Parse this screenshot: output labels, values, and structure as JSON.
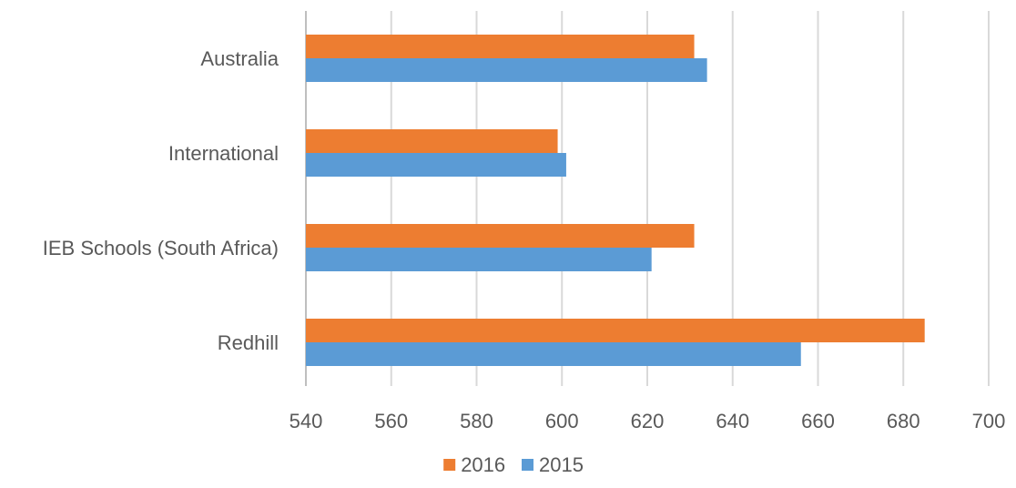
{
  "chart_data": {
    "type": "bar",
    "orientation": "horizontal",
    "title": "",
    "xlabel": "",
    "ylabel": "",
    "categories": [
      "Australia",
      "International",
      "IEB Schools (South Africa)",
      "Redhill"
    ],
    "series": [
      {
        "name": "2016",
        "color": "#ED7D31",
        "values": [
          631,
          599,
          631,
          685
        ]
      },
      {
        "name": "2015",
        "color": "#5B9BD5",
        "values": [
          634,
          601,
          621,
          656
        ]
      }
    ],
    "xlim": [
      540,
      700
    ],
    "xticks": [
      "540",
      "560",
      "580",
      "600",
      "620",
      "640",
      "660",
      "680",
      "700"
    ],
    "grid": "vertical",
    "legend": {
      "position": "bottom",
      "entries": [
        "2016",
        "2015"
      ]
    },
    "colors": {
      "grid": "#D9D9D9",
      "text": "#595959"
    }
  }
}
